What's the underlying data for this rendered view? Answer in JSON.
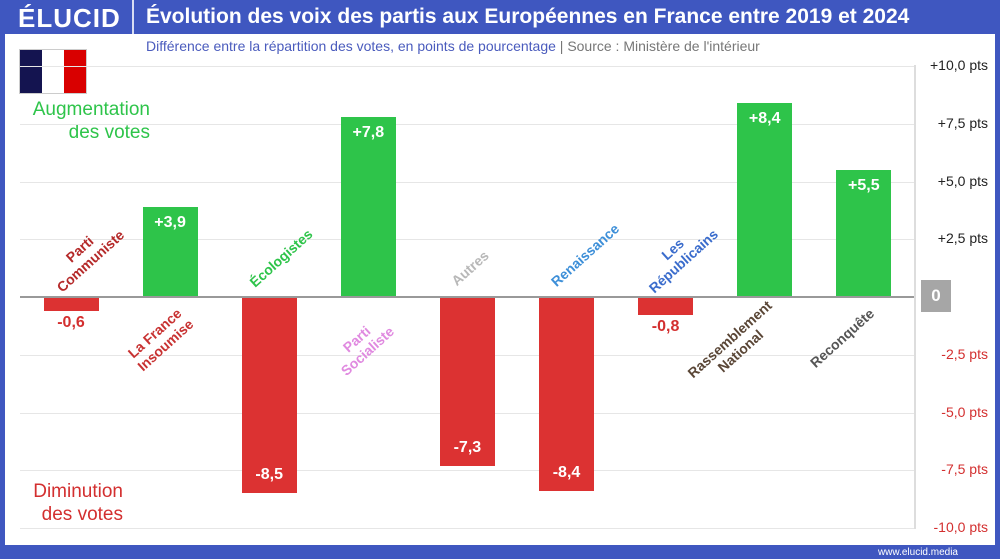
{
  "header": {
    "logo": "ÉLUCID",
    "title": "Évolution des voix des partis aux Européennes en France entre 2019 et 2024"
  },
  "subtitle": {
    "main": "Différence entre la répartition des votes, en points de pourcentage",
    "separator": "|",
    "source": "Source : Ministère de l'intérieur"
  },
  "notes": {
    "increase": "Augmentation des votes",
    "decrease": "Diminution des votes"
  },
  "footer": {
    "url": "www.elucid.media"
  },
  "colors": {
    "brand": "#3f57c0",
    "positive": "#2ec44a",
    "negative": "#dc3232"
  },
  "chart_data": {
    "type": "bar",
    "title": "Évolution des voix des partis aux Européennes en France entre 2019 et 2024",
    "ylabel": "points de pourcentage",
    "ylim": [
      -10,
      10
    ],
    "grid": true,
    "yticks": [
      {
        "v": 10,
        "label": "+10,0 pts"
      },
      {
        "v": 7.5,
        "label": "+7,5 pts"
      },
      {
        "v": 5,
        "label": "+5,0 pts"
      },
      {
        "v": 2.5,
        "label": "+2,5 pts"
      },
      {
        "v": 0,
        "label": "0"
      },
      {
        "v": -2.5,
        "label": "-2,5 pts"
      },
      {
        "v": -5,
        "label": "-5,0 pts"
      },
      {
        "v": -7.5,
        "label": "-7,5 pts"
      },
      {
        "v": -10,
        "label": "-10,0 pts"
      }
    ],
    "categories": [
      "Parti Communiste",
      "La France Insoumise",
      "Écologistes",
      "Parti Socialiste",
      "Autres",
      "Renaissance",
      "Les Républicains",
      "Rassemblement National",
      "Reconquête"
    ],
    "category_colors": [
      "#b52a2a",
      "#c83232",
      "#2ec44a",
      "#e08ae0",
      "#b8b8b8",
      "#3d8fd8",
      "#3a6ccc",
      "#5a4636",
      "#555555"
    ],
    "values": [
      -0.6,
      3.9,
      -8.5,
      7.8,
      -7.3,
      -8.4,
      -0.8,
      8.4,
      5.5
    ],
    "labels": [
      "-0,6",
      "+3,9",
      "-8,5",
      "+7,8",
      "-7,3",
      "-8,4",
      "-0,8",
      "+8,4",
      "+5,5"
    ]
  }
}
